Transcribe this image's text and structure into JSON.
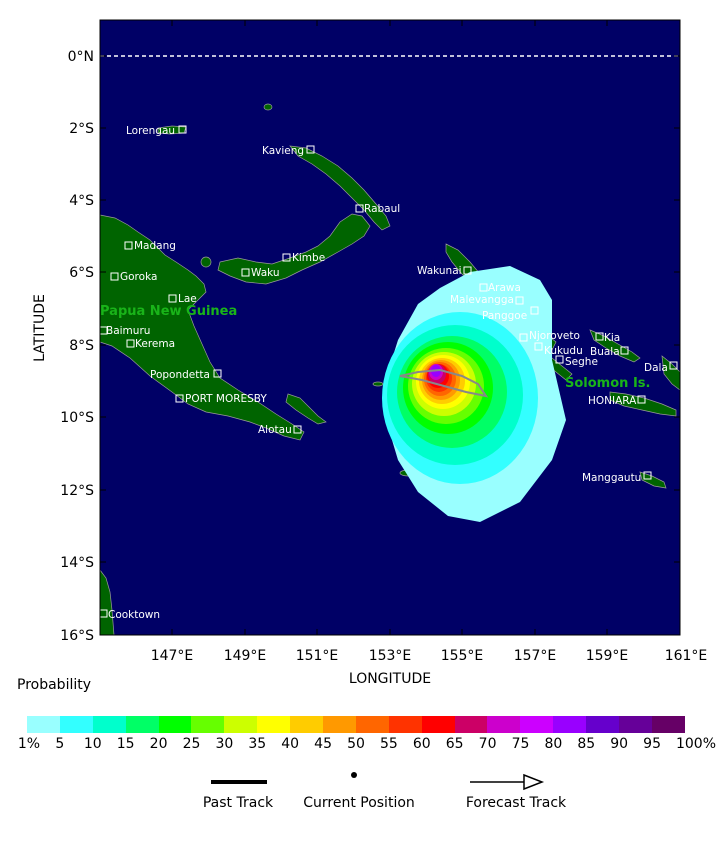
{
  "map": {
    "y_axis_title": "LATITUDE",
    "x_axis_title": "LONGITUDE",
    "lat_labels": [
      "0°N",
      "2°S",
      "4°S",
      "6°S",
      "8°S",
      "10°S",
      "12°S",
      "14°S",
      "16°S"
    ],
    "lon_labels": [
      "147°E",
      "149°E",
      "151°E",
      "153°E",
      "155°E",
      "157°E",
      "159°E",
      "161°E"
    ],
    "country_labels": [
      "Papua New Guinea",
      "Solomon Is."
    ],
    "cities": [
      "Lorengau",
      "Kavieng",
      "Rabaul",
      "Madang",
      "Goroka",
      "Waku",
      "Kimbe",
      "Lae",
      "Baimuru",
      "Kerema",
      "Popondetta",
      "PORT MORESBY",
      "Alotau",
      "Wakunai",
      "Arawa",
      "Malevangga",
      "Panggoe",
      "Njoroveto",
      "Kukudu",
      "Seghe",
      "Kia",
      "Buala",
      "Dala",
      "HONIARA",
      "Manggautu",
      "Cooktown"
    ]
  },
  "legend": {
    "title": "Probability",
    "colors": [
      "#99ffff",
      "#33ffff",
      "#00ffcc",
      "#00ff66",
      "#00ff00",
      "#66ff00",
      "#ccff00",
      "#ffff00",
      "#ffcc00",
      "#ff9900",
      "#ff6600",
      "#ff3300",
      "#ff0000",
      "#cc0066",
      "#cc00cc",
      "#cc00ff",
      "#9900ff",
      "#6600cc",
      "#660099",
      "#660066"
    ],
    "tick_labels": [
      "1%",
      "5",
      "10",
      "15",
      "20",
      "25",
      "30",
      "35",
      "40",
      "45",
      "50",
      "55",
      "60",
      "65",
      "70",
      "75",
      "80",
      "85",
      "90",
      "95",
      "100%"
    ]
  },
  "key": {
    "past_track": "Past Track",
    "current_position": "Current Position",
    "forecast_track": "Forecast Track"
  },
  "colors": {
    "ocean": "#000066",
    "land": "#006400",
    "country_label": "#19b419"
  }
}
